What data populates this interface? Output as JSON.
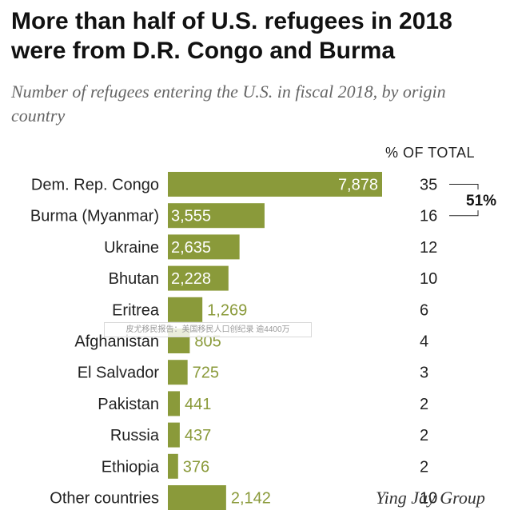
{
  "chart_data": {
    "type": "bar",
    "orientation": "horizontal",
    "title": "More than half of U.S. refugees in 2018 were from D.R. Congo and Burma",
    "subtitle": "Number of refugees entering the U.S. in fiscal 2018, by origin country",
    "pct_header": "% OF TOTAL",
    "categories": [
      "Dem. Rep. Congo",
      "Burma (Myanmar)",
      "Ukraine",
      "Bhutan",
      "Eritrea",
      "Afghanistan",
      "El Salvador",
      "Pakistan",
      "Russia",
      "Ethiopia",
      "Other countries"
    ],
    "values": [
      7878,
      3555,
      2635,
      2228,
      1269,
      805,
      725,
      441,
      437,
      376,
      2142
    ],
    "value_labels": [
      "7,878",
      "3,555",
      "2,635",
      "2,228",
      "1,269",
      "805",
      "725",
      "441",
      "437",
      "376",
      "2,142"
    ],
    "pct_of_total": [
      "35",
      "16",
      "12",
      "10",
      "6",
      "4",
      "3",
      "2",
      "2",
      "2",
      "10"
    ],
    "bracket": {
      "label": "51%",
      "from_index": 0,
      "to_index": 1
    },
    "xlim": [
      0,
      7878
    ],
    "bar_color": "#8a9a3a",
    "inside_label_color": "#ffffff",
    "outside_label_color": "#8a9a3a"
  },
  "watermark": "皮尤移民报告：美国移民人口创纪录 逾4400万",
  "brand": "Ying Jay Group"
}
